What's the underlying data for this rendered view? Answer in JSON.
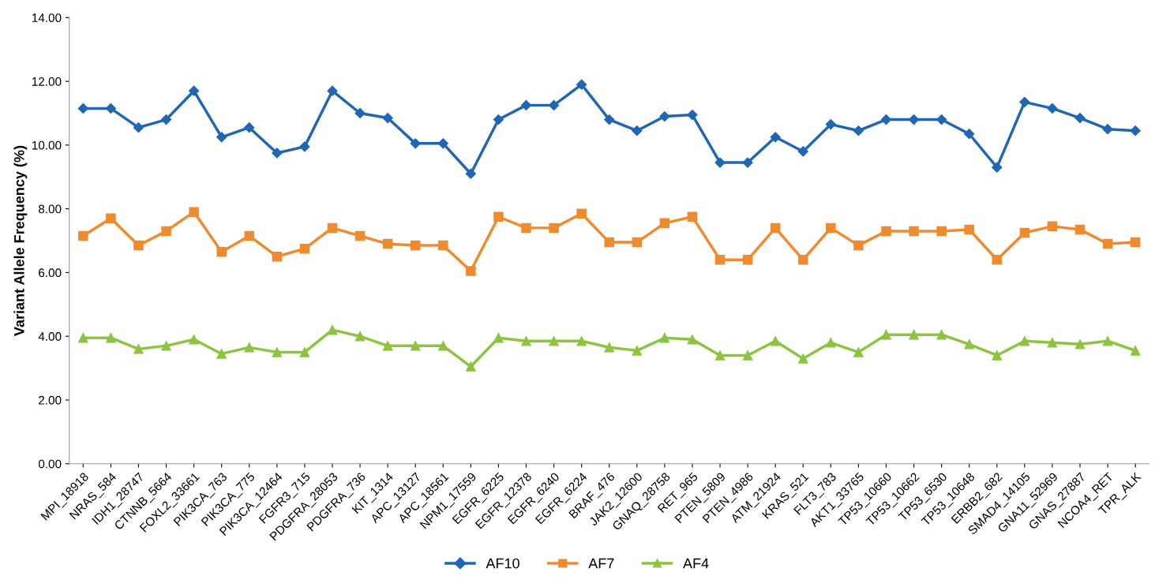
{
  "chart_data": {
    "type": "line",
    "ylabel": "Variant Allele Frequency (%)",
    "categories": [
      "MPI_18918",
      "NRAS_584",
      "IDH1_28747",
      "CTNNB_5664",
      "FOXL2_33661",
      "PIK3CA_763",
      "PIK3CA_775",
      "PIK3CA_12464",
      "FGFR3_715",
      "PDGFRA_28053",
      "PDGFRA_736",
      "KIT_1314",
      "APC_13127",
      "APC_18561",
      "NPM1_17559",
      "EGFR_6225",
      "EGFR_12378",
      "EGFR_6240",
      "EGFR_6224",
      "BRAF_476",
      "JAK2_12600",
      "GNAQ_28758",
      "RET_965",
      "PTEN_5809",
      "PTEN_4986",
      "ATM_21924",
      "KRAS_521",
      "FLT3_783",
      "AKT1_33765",
      "TP53_10660",
      "TP53_10662",
      "TP53_6530",
      "TP53_10648",
      "ERBB2_682",
      "SMAD4_14105",
      "GNA11_52969",
      "GNAS_27887",
      "NCOA4_RET",
      "TPR_ALK"
    ],
    "series": [
      {
        "name": "AF10",
        "color": "#1f66b4",
        "marker": "diamond",
        "values": [
          11.15,
          11.15,
          10.55,
          10.8,
          11.7,
          10.25,
          10.55,
          9.75,
          9.95,
          11.7,
          11.0,
          10.85,
          10.05,
          10.05,
          9.1,
          10.8,
          11.25,
          11.25,
          11.9,
          10.8,
          10.45,
          10.9,
          10.95,
          9.45,
          9.45,
          10.25,
          9.8,
          10.65,
          10.45,
          10.8,
          10.8,
          10.8,
          10.35,
          9.3,
          11.35,
          11.15,
          10.85,
          10.5,
          10.45
        ]
      },
      {
        "name": "AF7",
        "color": "#ef8a2e",
        "marker": "square",
        "values": [
          7.15,
          7.7,
          6.85,
          7.3,
          7.9,
          6.65,
          7.15,
          6.5,
          6.75,
          7.4,
          7.15,
          6.9,
          6.85,
          6.85,
          6.05,
          7.75,
          7.4,
          7.4,
          7.85,
          6.95,
          6.95,
          7.55,
          7.75,
          6.4,
          6.4,
          7.4,
          6.4,
          7.4,
          6.85,
          7.3,
          7.3,
          7.3,
          7.35,
          6.4,
          7.25,
          7.45,
          7.35,
          6.9,
          6.95
        ]
      },
      {
        "name": "AF4",
        "color": "#8cc43f",
        "marker": "triangle",
        "values": [
          3.95,
          3.95,
          3.6,
          3.7,
          3.9,
          3.45,
          3.65,
          3.5,
          3.5,
          4.2,
          4.0,
          3.7,
          3.7,
          3.7,
          3.05,
          3.95,
          3.85,
          3.85,
          3.85,
          3.65,
          3.55,
          3.95,
          3.9,
          3.4,
          3.4,
          3.85,
          3.3,
          3.8,
          3.5,
          4.05,
          4.05,
          4.05,
          3.75,
          3.4,
          3.85,
          3.8,
          3.75,
          3.85,
          3.55
        ]
      }
    ],
    "ylim": [
      0,
      14
    ],
    "yticks": [
      {
        "value": 0,
        "label": "0.00"
      },
      {
        "value": 2,
        "label": "2.00"
      },
      {
        "value": 4,
        "label": "4.00"
      },
      {
        "value": 6,
        "label": "6.00"
      },
      {
        "value": 8,
        "label": "8.00"
      },
      {
        "value": 10,
        "label": "10.00"
      },
      {
        "value": 12,
        "label": "12.00"
      },
      {
        "value": 14,
        "label": "14.00"
      }
    ],
    "grid": false,
    "legend": "bottom",
    "line_style": "solid"
  }
}
